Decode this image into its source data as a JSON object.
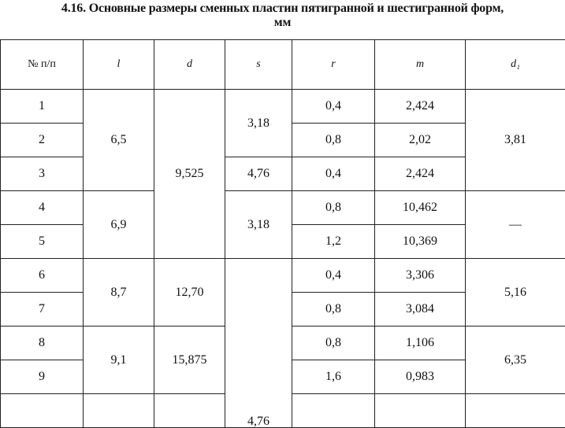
{
  "title": "4.16. Основные размеры сменных пластин пятигранной и шестигранной форм,",
  "unit": "мм",
  "table": {
    "header": [
      "№ п/п",
      "l",
      "d",
      "s",
      "r",
      "m",
      "d₁"
    ],
    "number": [
      "1",
      "2",
      "3",
      "4",
      "5",
      "6",
      "7",
      "8",
      "9"
    ],
    "l": [
      "6,5",
      "6,9",
      "8,7",
      "9,1"
    ],
    "d": [
      "9,525",
      "12,70",
      "15,875"
    ],
    "s": [
      "3,18",
      "4,76",
      "3,18",
      "4,76"
    ],
    "r": [
      "0,4",
      "0,8",
      "0,4",
      "0,8",
      "1,2",
      "0,4",
      "0,8",
      "0,8",
      "1,6"
    ],
    "m": [
      "2,424",
      "2,02",
      "2,424",
      "10,462",
      "10,369",
      "3,306",
      "3,084",
      "1,106",
      "0,983"
    ],
    "d1": [
      "3,81",
      "—",
      "5,16",
      "6,35"
    ]
  }
}
